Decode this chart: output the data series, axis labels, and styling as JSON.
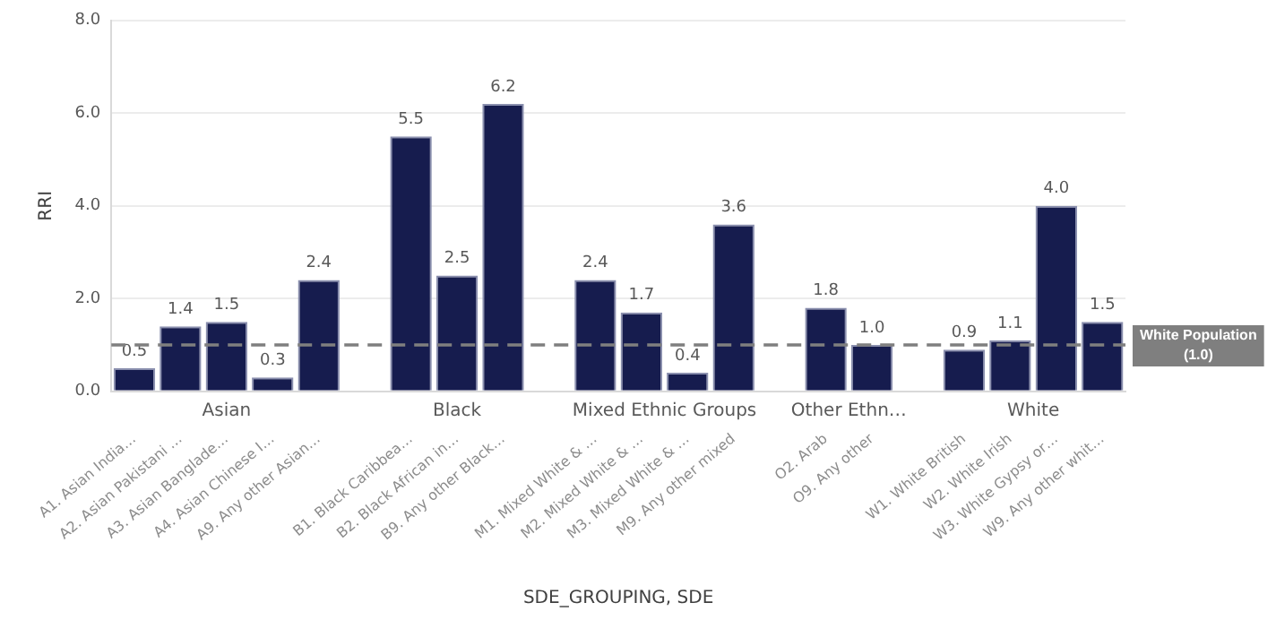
{
  "chart_data": {
    "type": "bar",
    "xlabel": "SDE_GROUPING, SDE",
    "ylabel": "RRI",
    "categories": [
      "A1. Asian India…",
      "A2. Asian Pakistani …",
      "A3. Asian Banglade…",
      "A4. Asian Chinese I…",
      "A9. Any other Asian…",
      null,
      "B1. Black Caribbea…",
      "B2. Black African in…",
      "B9. Any other Black…",
      null,
      "M1. Mixed White & …",
      "M2. Mixed White & …",
      "M3. Mixed White & …",
      "M9. Any other mixed",
      null,
      "O2. Arab",
      "O9. Any other",
      null,
      "W1. White British",
      "W2. White Irish",
      "W3. White Gypsy or…",
      "W9. Any other whit…"
    ],
    "values": [
      0.5,
      1.4,
      1.5,
      0.3,
      2.4,
      null,
      5.5,
      2.5,
      6.2,
      null,
      2.4,
      1.7,
      0.4,
      3.6,
      null,
      1.8,
      1.0,
      null,
      0.9,
      1.1,
      4.0,
      1.5
    ],
    "value_labels": [
      "0.5",
      "1.4",
      "1.5",
      "0.3",
      "2.4",
      null,
      "5.5",
      "2.5",
      "6.2",
      null,
      "2.4",
      "1.7",
      "0.4",
      "3.6",
      null,
      "1.8",
      "1.0",
      null,
      "0.9",
      "1.1",
      "4.0",
      "1.5"
    ],
    "color": "#161c4e",
    "annotations": [
      "Asian",
      "Black",
      "Mixed Ethnic Groups",
      "Other Ethn…",
      "White"
    ],
    "ylim": [
      0,
      8
    ],
    "yticks": [
      {
        "value": 0,
        "label": "0.0"
      },
      {
        "value": 2,
        "label": "2.0"
      },
      {
        "value": 4,
        "label": "4.0"
      },
      {
        "value": 6,
        "label": "6.0"
      },
      {
        "value": 8,
        "label": "8.0"
      }
    ],
    "ref_lines": [
      {
        "axis": "y",
        "value": 1.0,
        "label": "White Population (1.0)",
        "color": "#7f7f7f",
        "line_style": "dashed"
      }
    ],
    "grid": "y",
    "legend": false
  }
}
